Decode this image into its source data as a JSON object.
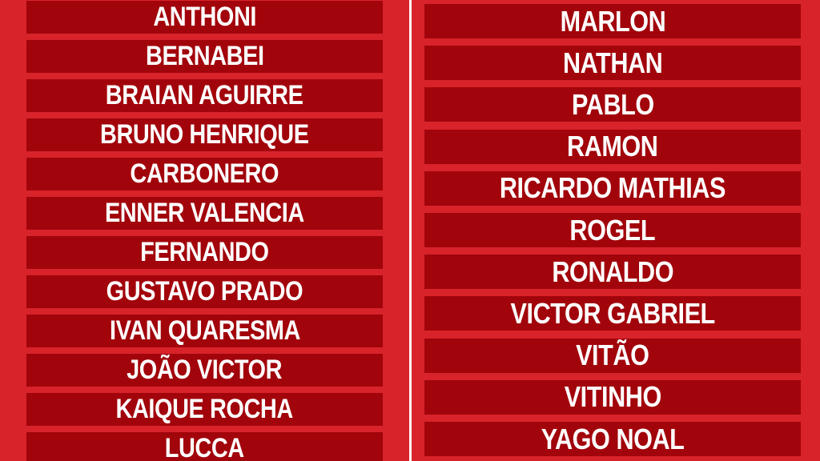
{
  "left_names": [
    "ANTHONI",
    "BERNABEI",
    "BRAIAN AGUIRRE",
    "BRUNO HENRIQUE",
    "CARBONERO",
    "ENNER VALENCIA",
    "FERNANDO",
    "GUSTAVO PRADO",
    "IVAN QUARESMA",
    "JOÃO VICTOR",
    "KAIQUE ROCHA",
    "LUCCA"
  ],
  "right_names": [
    "MARLON",
    "NATHAN",
    "PABLO",
    "RAMON",
    "RICARDO MATHIAS",
    "ROGEL",
    "RONALDO",
    "VICTOR GABRIEL",
    "VITÃO",
    "VITINHO",
    "YAGO NOAL"
  ],
  "colors": {
    "background": "#d8232b",
    "bar": "#a2040b",
    "text": "#ffffff"
  }
}
